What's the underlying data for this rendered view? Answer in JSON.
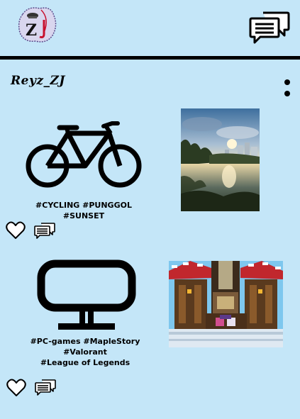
{
  "app": {
    "logo_icon": "zj-logo-icon",
    "messages_icon": "chat-bubbles-icon"
  },
  "profile": {
    "username": "Reyz_ZJ",
    "menu_icon": "kebab-menu-icon"
  },
  "posts": [
    {
      "category_icon": "bicycle-icon",
      "tags": "#CYCLING #PUNGGOL #SUNSET",
      "photo": "sunset-river-photo",
      "like_icon": "heart-outline-icon",
      "comment_icon": "chat-bubbles-icon"
    },
    {
      "category_icon": "monitor-icon",
      "tags_line1": "#PC-games #MapleStory #Valorant",
      "tags_line2": "#League of Legends",
      "photo": "pixel-game-scene",
      "like_icon": "heart-outline-icon",
      "comment_icon": "chat-bubbles-icon"
    }
  ],
  "colors": {
    "background": "#c4e6f8",
    "foreground": "#000000",
    "logo_accent": "#c8102e"
  }
}
